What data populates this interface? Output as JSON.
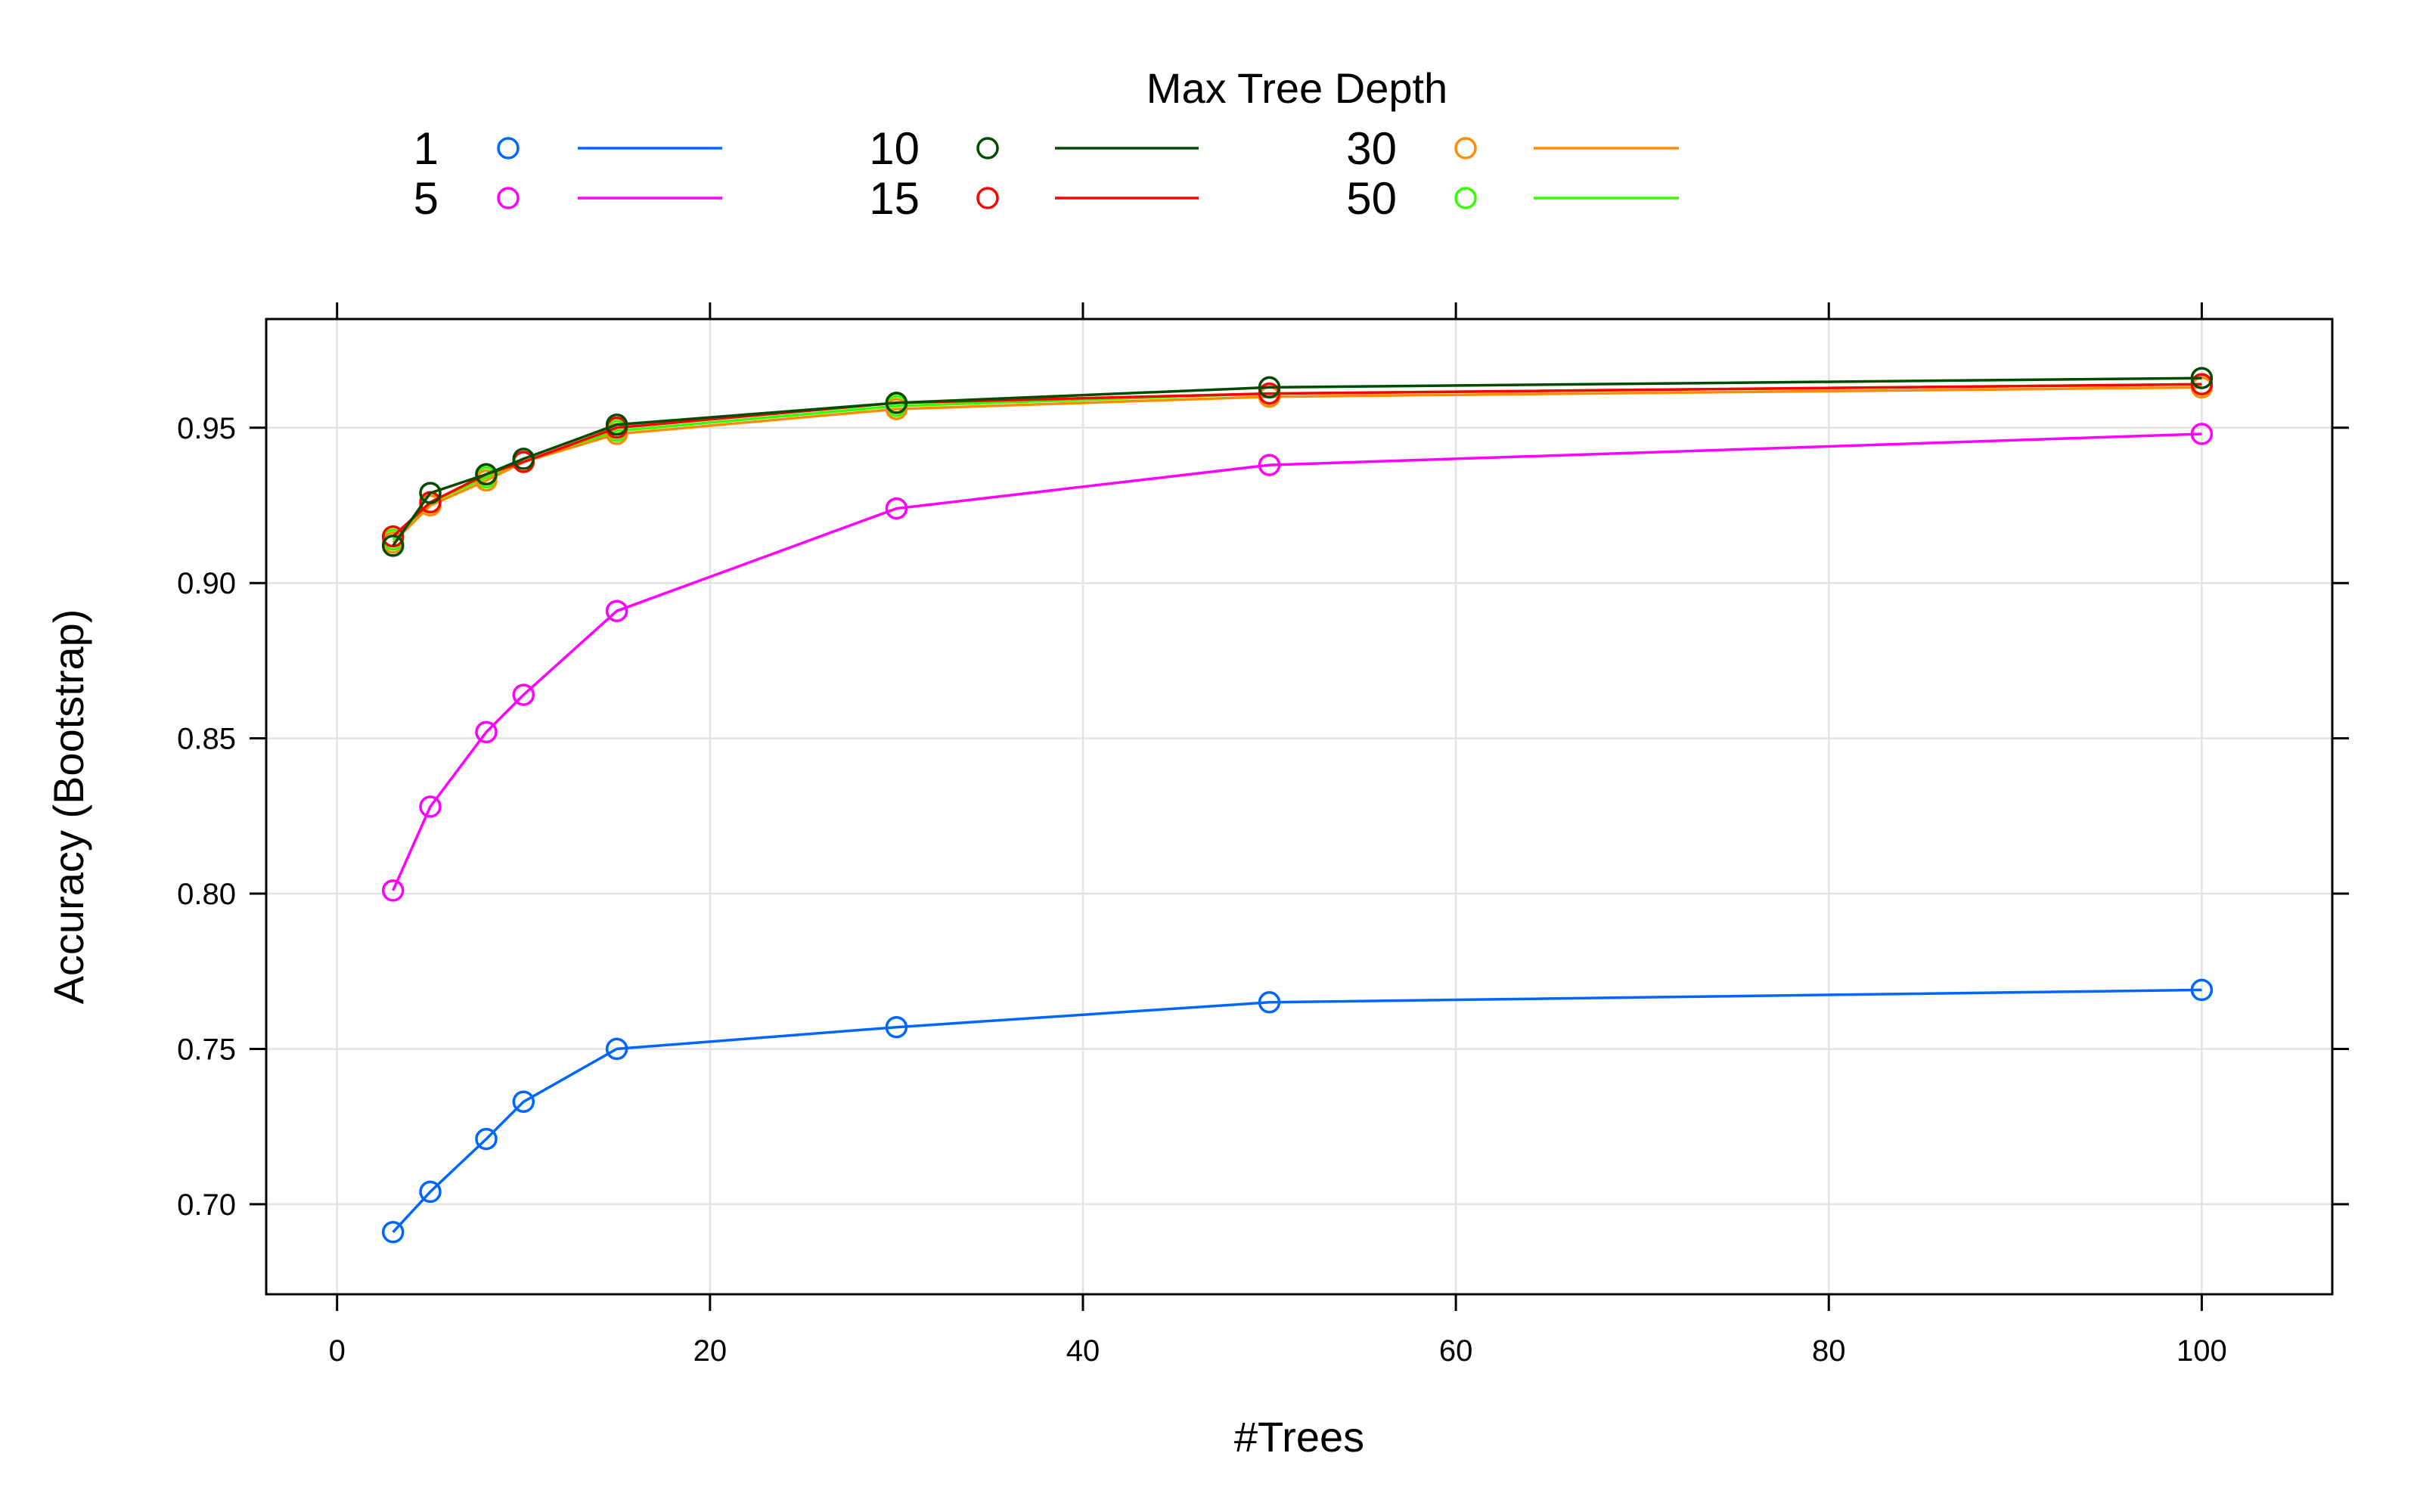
{
  "chart_data": {
    "type": "line",
    "xlabel": "#Trees",
    "ylabel": "Accuracy (Bootstrap)",
    "xlim": [
      -3.8,
      107
    ],
    "ylim": [
      0.671,
      0.985
    ],
    "x_ticks": [
      0,
      20,
      40,
      60,
      80,
      100
    ],
    "x_tick_labels": [
      "0",
      "20",
      "40",
      "60",
      "80",
      "100"
    ],
    "y_ticks": [
      0.7,
      0.75,
      0.8,
      0.85,
      0.9,
      0.95
    ],
    "y_tick_labels": [
      "0.70",
      "0.75",
      "0.80",
      "0.85",
      "0.90",
      "0.95"
    ],
    "grid": true,
    "legend": {
      "title": "Max Tree Depth",
      "position": "top",
      "columns": 3
    },
    "x": [
      3,
      5,
      8,
      10,
      15,
      30,
      50,
      100
    ],
    "series": [
      {
        "name": "1",
        "color": "#0066ff",
        "values": [
          0.691,
          0.704,
          0.721,
          0.733,
          0.75,
          0.757,
          0.765,
          0.769
        ]
      },
      {
        "name": "5",
        "color": "#ff00ff",
        "values": [
          0.801,
          0.828,
          0.852,
          0.864,
          0.891,
          0.924,
          0.938,
          0.948
        ]
      },
      {
        "name": "10",
        "color": "#004d00",
        "values": [
          0.912,
          0.929,
          0.935,
          0.94,
          0.951,
          0.958,
          0.963,
          0.966
        ]
      },
      {
        "name": "15",
        "color": "#ff0000",
        "values": [
          0.915,
          0.926,
          0.935,
          0.939,
          0.95,
          0.958,
          0.961,
          0.964
        ]
      },
      {
        "name": "30",
        "color": "#ff8c00",
        "values": [
          0.913,
          0.925,
          0.933,
          0.939,
          0.948,
          0.956,
          0.96,
          0.963
        ]
      },
      {
        "name": "50",
        "color": "#33ff00",
        "values": [
          0.914,
          0.926,
          0.934,
          0.939,
          0.949,
          0.957,
          0.961,
          0.964
        ]
      }
    ]
  }
}
